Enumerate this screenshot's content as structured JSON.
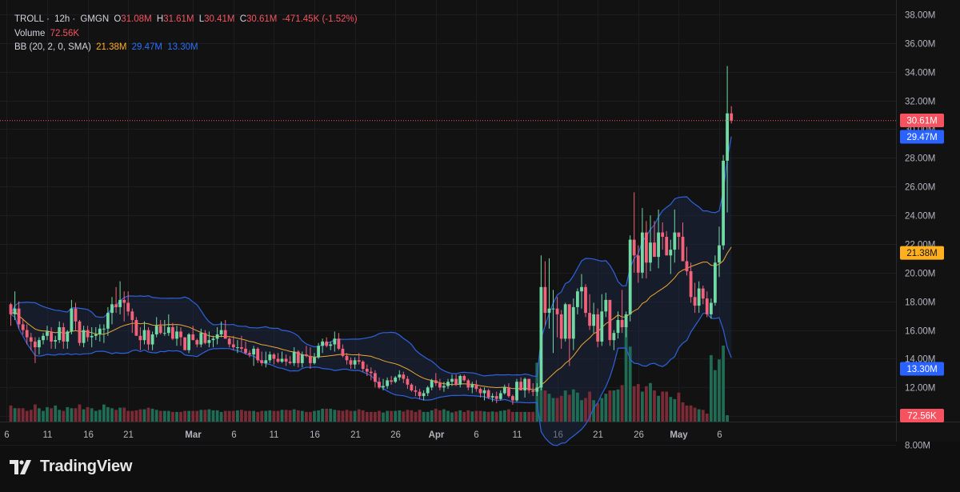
{
  "header": {
    "symbol": "TROLL",
    "interval": "12h",
    "exchange": "GMGN",
    "o_label": "O",
    "o_value": "31.08M",
    "h_label": "H",
    "h_value": "31.61M",
    "l_label": "L",
    "l_value": "30.41M",
    "c_label": "C",
    "c_value": "30.61M",
    "change": "-471.45K (-1.52%)",
    "volume_label": "Volume",
    "volume_value": "72.56K",
    "bb_label": "BB (20, 2, 0, SMA)",
    "bb_basis": "21.38M",
    "bb_upper": "29.47M",
    "bb_lower": "13.30M"
  },
  "brand": {
    "name": "TradingView"
  },
  "colors": {
    "up": "#71d9a3",
    "down": "#f2627a",
    "basis": "#f0a830",
    "band": "#2d63e0",
    "price_tag": "#f7525f",
    "upper_tag": "#2962ff",
    "basis_tag": "#ffb01f"
  },
  "chart_data": {
    "type": "candlestick",
    "title": "TROLL · 12h · GMGN",
    "y_axis": {
      "ticks": [
        "8.00M",
        "10.00M",
        "12.00M",
        "14.00M",
        "16.00M",
        "18.00M",
        "20.00M",
        "22.00M",
        "24.00M",
        "26.00M",
        "28.00M",
        "30.00M",
        "32.00M",
        "34.00M",
        "36.00M",
        "38.00M"
      ],
      "tick_values": [
        8,
        10,
        12,
        14,
        16,
        18,
        20,
        22,
        24,
        26,
        28,
        30,
        32,
        34,
        36,
        38
      ],
      "unit": "M",
      "ylim": [
        6.5,
        39
      ]
    },
    "x_axis": {
      "ticks": [
        "6",
        "11",
        "16",
        "21",
        "Mar",
        "6",
        "11",
        "16",
        "21",
        "26",
        "Apr",
        "6",
        "11",
        "16",
        "21",
        "26",
        "May",
        "6"
      ],
      "tick_bar_index": [
        -1,
        9,
        19,
        29,
        45,
        55,
        65,
        75,
        85,
        95,
        105,
        115,
        125,
        135,
        145,
        155,
        165,
        175
      ]
    },
    "last_price": "30.61M",
    "last_volume": "72.56K",
    "price_tags": [
      {
        "label": "30.61M",
        "value": 30.61,
        "kind": "price"
      },
      {
        "label": "29.47M",
        "value": 29.47,
        "kind": "upper"
      },
      {
        "label": "21.38M",
        "value": 21.38,
        "kind": "basis"
      },
      {
        "label": "13.30M",
        "value": 13.3,
        "kind": "lower"
      }
    ],
    "ohlc": [
      [
        17.8,
        17.9,
        16.3,
        17.1
      ],
      [
        17.1,
        18.7,
        16.7,
        17.5
      ],
      [
        17.5,
        18.0,
        16.1,
        16.4
      ],
      [
        16.4,
        16.8,
        15.7,
        16.0
      ],
      [
        16.0,
        16.4,
        15.0,
        15.5
      ],
      [
        15.5,
        15.8,
        14.6,
        15.2
      ],
      [
        15.2,
        15.5,
        13.7,
        14.8
      ],
      [
        14.8,
        15.5,
        14.3,
        15.3
      ],
      [
        15.3,
        15.8,
        15.0,
        15.6
      ],
      [
        15.6,
        16.3,
        15.3,
        15.9
      ],
      [
        15.9,
        16.2,
        14.7,
        15.2
      ],
      [
        15.2,
        15.6,
        14.7,
        15.3
      ],
      [
        15.3,
        16.6,
        15.1,
        16.2
      ],
      [
        16.2,
        16.5,
        14.7,
        15.2
      ],
      [
        15.2,
        16.0,
        14.7,
        15.9
      ],
      [
        15.9,
        18.1,
        15.7,
        17.5
      ],
      [
        17.5,
        17.9,
        16.0,
        16.6
      ],
      [
        16.6,
        16.7,
        14.9,
        15.1
      ],
      [
        15.1,
        16.3,
        14.8,
        16.0
      ],
      [
        16.0,
        16.3,
        15.2,
        15.5
      ],
      [
        15.5,
        16.2,
        14.8,
        15.6
      ],
      [
        15.6,
        16.2,
        15.3,
        15.7
      ],
      [
        15.7,
        16.4,
        15.2,
        16.1
      ],
      [
        16.1,
        16.4,
        15.1,
        16.1
      ],
      [
        16.1,
        17.6,
        15.6,
        17.2
      ],
      [
        17.2,
        18.3,
        16.4,
        17.8
      ],
      [
        17.8,
        19.0,
        17.2,
        17.6
      ],
      [
        17.6,
        19.4,
        17.1,
        18.1
      ],
      [
        18.1,
        18.7,
        16.6,
        17.9
      ],
      [
        17.9,
        18.7,
        17.0,
        17.3
      ],
      [
        17.3,
        17.5,
        15.8,
        16.7
      ],
      [
        16.7,
        16.9,
        15.6,
        15.6
      ],
      [
        15.6,
        16.2,
        14.6,
        15.3
      ],
      [
        15.3,
        16.6,
        15.0,
        16.0
      ],
      [
        16.0,
        16.2,
        14.6,
        15.0
      ],
      [
        15.0,
        15.9,
        14.6,
        15.7
      ],
      [
        15.7,
        16.9,
        15.5,
        16.3
      ],
      [
        16.3,
        16.7,
        15.7,
        15.8
      ],
      [
        15.8,
        16.7,
        15.6,
        15.8
      ],
      [
        15.8,
        17.1,
        15.6,
        16.2
      ],
      [
        16.2,
        16.5,
        15.3,
        15.4
      ],
      [
        15.4,
        16.3,
        14.9,
        15.9
      ],
      [
        15.9,
        16.2,
        14.9,
        15.5
      ],
      [
        15.5,
        15.5,
        14.6,
        14.6
      ],
      [
        14.6,
        15.8,
        14.4,
        15.7
      ],
      [
        15.7,
        16.3,
        15.3,
        15.3
      ],
      [
        15.3,
        15.4,
        14.8,
        15.0
      ],
      [
        15.0,
        16.1,
        14.8,
        15.8
      ],
      [
        15.8,
        16.0,
        15.0,
        15.1
      ],
      [
        15.1,
        15.9,
        14.8,
        15.3
      ],
      [
        15.3,
        15.6,
        14.8,
        15.4
      ],
      [
        15.4,
        16.2,
        15.0,
        15.7
      ],
      [
        15.7,
        16.6,
        15.5,
        16.0
      ],
      [
        16.0,
        16.7,
        15.4,
        15.4
      ],
      [
        15.4,
        15.5,
        14.8,
        15.0
      ],
      [
        15.0,
        15.6,
        14.6,
        14.8
      ],
      [
        14.8,
        15.3,
        14.4,
        14.8
      ],
      [
        14.8,
        15.6,
        14.5,
        14.7
      ],
      [
        14.7,
        15.2,
        14.3,
        14.4
      ],
      [
        14.4,
        14.6,
        14.1,
        14.3
      ],
      [
        14.3,
        14.9,
        13.5,
        14.7
      ],
      [
        14.7,
        14.8,
        13.7,
        13.9
      ],
      [
        13.9,
        14.5,
        13.5,
        13.7
      ],
      [
        13.7,
        14.5,
        13.4,
        13.9
      ],
      [
        13.9,
        14.5,
        13.7,
        14.3
      ],
      [
        14.3,
        14.4,
        13.6,
        14.0
      ],
      [
        14.0,
        14.4,
        13.7,
        13.8
      ],
      [
        13.8,
        14.5,
        13.7,
        14.0
      ],
      [
        14.0,
        14.3,
        13.5,
        13.8
      ],
      [
        13.8,
        14.2,
        13.6,
        13.7
      ],
      [
        13.7,
        14.8,
        13.5,
        14.5
      ],
      [
        14.5,
        14.6,
        13.4,
        13.7
      ],
      [
        13.7,
        14.5,
        13.4,
        14.3
      ],
      [
        14.3,
        14.9,
        14.1,
        14.2
      ],
      [
        14.2,
        14.8,
        13.3,
        13.7
      ],
      [
        13.7,
        14.4,
        13.6,
        14.1
      ],
      [
        14.1,
        15.1,
        14.0,
        14.9
      ],
      [
        14.9,
        15.4,
        14.4,
        15.2
      ],
      [
        15.2,
        15.5,
        14.8,
        14.9
      ],
      [
        14.9,
        15.2,
        14.6,
        15.0
      ],
      [
        15.0,
        15.9,
        14.5,
        15.4
      ],
      [
        15.4,
        15.8,
        14.6,
        14.7
      ],
      [
        14.7,
        15.0,
        14.1,
        14.2
      ],
      [
        14.2,
        14.4,
        13.6,
        13.9
      ],
      [
        13.9,
        14.1,
        13.3,
        13.6
      ],
      [
        13.6,
        14.1,
        13.3,
        13.9
      ],
      [
        13.9,
        14.4,
        13.6,
        13.8
      ],
      [
        13.8,
        13.9,
        13.1,
        13.3
      ],
      [
        13.3,
        13.6,
        12.8,
        13.1
      ],
      [
        13.1,
        13.4,
        12.5,
        13.0
      ],
      [
        13.0,
        13.2,
        12.0,
        12.4
      ],
      [
        12.4,
        12.7,
        11.9,
        12.0
      ],
      [
        12.0,
        12.6,
        11.8,
        12.1
      ],
      [
        12.1,
        12.7,
        11.9,
        12.5
      ],
      [
        12.5,
        12.8,
        12.2,
        12.4
      ],
      [
        12.4,
        12.8,
        12.3,
        12.7
      ],
      [
        12.7,
        13.2,
        12.5,
        12.9
      ],
      [
        12.9,
        13.1,
        12.3,
        12.6
      ],
      [
        12.6,
        12.8,
        11.9,
        12.2
      ],
      [
        12.2,
        12.3,
        11.7,
        11.8
      ],
      [
        11.8,
        12.1,
        11.4,
        11.7
      ],
      [
        11.7,
        11.9,
        11.2,
        11.4
      ],
      [
        11.4,
        11.8,
        11.1,
        11.6
      ],
      [
        11.6,
        12.1,
        11.4,
        12.0
      ],
      [
        12.0,
        12.6,
        11.8,
        12.5
      ],
      [
        12.5,
        13.0,
        12.1,
        12.3
      ],
      [
        12.3,
        12.6,
        11.8,
        12.0
      ],
      [
        12.0,
        12.4,
        11.7,
        12.1
      ],
      [
        12.1,
        12.6,
        11.9,
        12.4
      ],
      [
        12.4,
        12.9,
        12.1,
        12.6
      ],
      [
        12.6,
        12.9,
        12.1,
        12.2
      ],
      [
        12.2,
        12.9,
        12.0,
        12.8
      ],
      [
        12.8,
        12.9,
        12.4,
        12.5
      ],
      [
        12.5,
        12.6,
        11.8,
        12.0
      ],
      [
        12.0,
        12.4,
        11.6,
        12.2
      ],
      [
        12.2,
        12.5,
        11.7,
        11.9
      ],
      [
        11.9,
        12.0,
        11.3,
        11.6
      ],
      [
        11.6,
        12.0,
        11.1,
        11.8
      ],
      [
        11.8,
        11.9,
        11.2,
        11.3
      ],
      [
        11.3,
        11.6,
        11.0,
        11.4
      ],
      [
        11.4,
        11.7,
        10.9,
        11.2
      ],
      [
        11.2,
        11.8,
        11.1,
        11.6
      ],
      [
        11.6,
        12.2,
        11.5,
        12.0
      ],
      [
        12.0,
        12.3,
        11.3,
        11.4
      ],
      [
        11.4,
        11.5,
        10.8,
        11.1
      ],
      [
        11.1,
        12.6,
        11.0,
        12.4
      ],
      [
        12.4,
        12.7,
        11.8,
        11.8
      ],
      [
        11.8,
        12.7,
        11.3,
        12.6
      ],
      [
        12.6,
        12.6,
        11.6,
        11.8
      ],
      [
        11.8,
        12.3,
        11.4,
        11.7
      ],
      [
        11.7,
        12.3,
        11.4,
        12.0
      ],
      [
        12.0,
        21.2,
        11.8,
        19.0
      ],
      [
        19.0,
        20.8,
        16.3,
        17.2
      ],
      [
        17.2,
        21.0,
        16.1,
        17.5
      ],
      [
        17.5,
        18.8,
        14.4,
        17.5
      ],
      [
        17.5,
        18.3,
        15.5,
        17.1
      ],
      [
        17.1,
        17.4,
        14.7,
        15.4
      ],
      [
        15.4,
        17.9,
        15.2,
        17.8
      ],
      [
        17.8,
        17.8,
        13.5,
        15.4
      ],
      [
        15.4,
        18.2,
        14.6,
        17.6
      ],
      [
        17.6,
        18.9,
        17.1,
        18.7
      ],
      [
        18.7,
        19.9,
        17.5,
        19.0
      ],
      [
        19.0,
        19.2,
        16.9,
        17.2
      ],
      [
        17.2,
        18.5,
        16.0,
        16.3
      ],
      [
        16.3,
        17.9,
        15.8,
        17.1
      ],
      [
        17.1,
        17.5,
        14.8,
        15.2
      ],
      [
        15.2,
        18.5,
        14.9,
        17.3
      ],
      [
        17.3,
        18.6,
        16.9,
        18.1
      ],
      [
        18.1,
        18.1,
        14.9,
        15.3
      ],
      [
        15.3,
        16.0,
        14.6,
        15.8
      ],
      [
        15.8,
        17.3,
        15.4,
        16.7
      ],
      [
        16.7,
        18.8,
        15.8,
        16.2
      ],
      [
        16.2,
        17.3,
        15.5,
        17.1
      ],
      [
        17.1,
        22.6,
        16.6,
        22.3
      ],
      [
        22.3,
        25.6,
        20.0,
        21.2
      ],
      [
        21.2,
        21.9,
        19.3,
        20.0
      ],
      [
        20.0,
        24.5,
        19.6,
        22.8
      ],
      [
        22.8,
        23.6,
        19.6,
        20.7
      ],
      [
        20.7,
        24.0,
        20.1,
        22.1
      ],
      [
        22.1,
        23.6,
        21.2,
        21.1
      ],
      [
        21.1,
        24.4,
        20.3,
        22.8
      ],
      [
        22.8,
        23.5,
        21.6,
        22.5
      ],
      [
        22.5,
        22.9,
        21.4,
        21.2
      ],
      [
        21.2,
        22.3,
        19.9,
        21.6
      ],
      [
        21.6,
        24.4,
        20.7,
        22.8
      ],
      [
        22.8,
        22.8,
        21.6,
        22.5
      ],
      [
        22.5,
        23.5,
        20.8,
        20.8
      ],
      [
        20.8,
        21.8,
        19.8,
        20.1
      ],
      [
        20.1,
        20.7,
        17.9,
        18.3
      ],
      [
        18.3,
        19.3,
        17.2,
        17.7
      ],
      [
        17.7,
        19.4,
        17.2,
        18.9
      ],
      [
        18.9,
        19.1,
        17.8,
        18.2
      ],
      [
        18.2,
        18.7,
        16.9,
        17.1
      ],
      [
        17.1,
        18.2,
        16.8,
        17.9
      ],
      [
        17.9,
        21.2,
        17.7,
        20.7
      ],
      [
        20.7,
        23.2,
        19.7,
        21.9
      ],
      [
        21.9,
        28.2,
        21.6,
        27.8
      ],
      [
        27.8,
        34.4,
        24.2,
        31.1
      ],
      [
        31.1,
        31.6,
        30.4,
        30.6
      ]
    ],
    "volume": [
      3,
      2.5,
      2.5,
      2.5,
      2,
      2.2,
      3.2,
      2.5,
      2,
      2.7,
      2.5,
      3,
      2.2,
      2,
      2.7,
      2.5,
      2.5,
      3.2,
      2.3,
      2.7,
      2.5,
      2,
      2.2,
      3.2,
      2.7,
      2.5,
      2.2,
      2.6,
      2.6,
      2,
      2,
      2.1,
      2.3,
      2.3,
      2.6,
      2.4,
      2.2,
      2,
      2,
      2,
      1.8,
      1.8,
      1.8,
      2,
      2,
      2,
      2,
      2.2,
      2.2,
      2.3,
      2.1,
      2.1,
      1.8,
      2,
      2,
      2,
      2.1,
      2.2,
      2,
      2,
      2,
      1.8,
      2,
      2,
      2.1,
      2,
      2,
      2.2,
      2.2,
      2.1,
      2.3,
      2.1,
      2,
      1.8,
      1.8,
      2,
      2.1,
      2.4,
      2.4,
      2.4,
      2.2,
      2.1,
      2,
      2.2,
      2,
      2,
      2.3,
      2.1,
      1.8,
      1.8,
      1.8,
      2,
      1.7,
      2,
      2,
      2,
      2.1,
      1.9,
      2.2,
      2.1,
      1.8,
      2.2,
      1.8,
      1.8,
      2.1,
      2.4,
      2.1,
      2.3,
      2,
      1.7,
      1.9,
      2.1,
      1.8,
      2.1,
      1.9,
      2,
      2,
      1.9,
      1.8,
      1.9,
      1.8,
      2,
      2.1,
      2.3,
      1.8,
      1.8,
      1.8,
      1.8,
      1.8,
      1.8,
      11,
      9.6,
      5.8,
      5.2,
      4.4,
      4.4,
      4.8,
      5.8,
      5,
      6,
      5.4,
      4,
      4.4,
      5.6,
      4,
      3.4,
      4.4,
      5.2,
      5.8,
      5.8,
      6,
      6.8,
      18.6,
      14,
      6.6,
      7,
      5.6,
      6.6,
      7.2,
      5.8,
      4.8,
      5.6,
      5.6,
      4.6,
      4.2,
      5.4,
      3.6,
      3,
      3,
      2.6,
      2.3,
      2.2,
      1.5,
      12.4,
      9.6,
      11.6,
      14.2,
      1.2
    ],
    "volume_scale_max": 20
  }
}
